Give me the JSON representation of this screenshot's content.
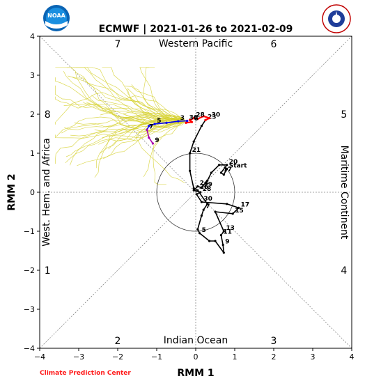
{
  "title": "ECMWF | 2021-01-26 to 2021-02-09",
  "credit": "Climate Prediction Center",
  "logos": {
    "left": {
      "name": "noaa",
      "text": "NOAA"
    },
    "right": {
      "name": "national-weather-service",
      "text": "NATIONAL WEATHER SERVICE"
    }
  },
  "colors": {
    "observed": "#000000",
    "ensemble": "#d4cf2a",
    "forecast_week1": "#ff0000",
    "forecast_week2": "#0000ff",
    "forecast_tail": "#aa00aa",
    "credit": "#ff1a1a"
  },
  "chart_data": {
    "type": "line",
    "title": "ECMWF | 2021-01-26 to 2021-02-09",
    "xlabel": "RMM 1",
    "ylabel": "RMM 2",
    "xlim": [
      -4,
      4
    ],
    "ylim": [
      -4,
      4
    ],
    "xticks": [
      -4,
      -3,
      -2,
      -1,
      0,
      1,
      2,
      3,
      4
    ],
    "yticks": [
      -4,
      -3,
      -2,
      -1,
      0,
      1,
      2,
      3,
      4
    ],
    "grid": false,
    "unit_circle_radius": 1,
    "region_labels": {
      "top": "Western Pacific",
      "bottom": "Indian Ocean",
      "left": "West. Hem. and Africa",
      "right": "Maritime Continent"
    },
    "phase_labels": [
      {
        "text": "7",
        "x": -2.0,
        "y": 3.8
      },
      {
        "text": "6",
        "x": 2.0,
        "y": 3.8
      },
      {
        "text": "8",
        "x": -3.8,
        "y": 2.0
      },
      {
        "text": "5",
        "x": 3.8,
        "y": 2.0
      },
      {
        "text": "1",
        "x": -3.8,
        "y": -2.0
      },
      {
        "text": "4",
        "x": 3.8,
        "y": -2.0
      },
      {
        "text": "2",
        "x": -2.0,
        "y": -3.8
      },
      {
        "text": "3",
        "x": 2.0,
        "y": -3.8
      }
    ],
    "series": [
      {
        "points": [
          {
            "x": 0.8,
            "y": 0.6,
            "label": "Start"
          },
          {
            "x": 0.72,
            "y": 0.45
          },
          {
            "x": 0.65,
            "y": 0.5,
            "label": "17"
          },
          {
            "x": 0.8,
            "y": 0.7,
            "label": "20"
          },
          {
            "x": 0.6,
            "y": 0.7
          },
          {
            "x": 0.4,
            "y": 0.5
          },
          {
            "x": 0.3,
            "y": 0.3
          },
          {
            "x": 0.15,
            "y": 0.12,
            "label": "19"
          },
          {
            "x": 0.05,
            "y": 0.15,
            "label": "24"
          },
          {
            "x": -0.05,
            "y": 0.05
          },
          {
            "x": 0.12,
            "y": 0.0,
            "label": "28"
          },
          {
            "x": 0.02,
            "y": -0.05
          },
          {
            "x": 0.15,
            "y": -0.25,
            "label": "30"
          },
          {
            "x": 0.8,
            "y": -0.3
          },
          {
            "x": 1.1,
            "y": -0.4,
            "label": "17"
          },
          {
            "x": 0.95,
            "y": -0.55,
            "label": "15"
          },
          {
            "x": 0.5,
            "y": -0.5
          },
          {
            "x": 0.72,
            "y": -1.0,
            "label": "13"
          },
          {
            "x": 0.65,
            "y": -1.1,
            "label": "11"
          },
          {
            "x": 0.7,
            "y": -1.35,
            "label": "9"
          },
          {
            "x": 0.72,
            "y": -1.55
          },
          {
            "x": 0.5,
            "y": -1.25
          },
          {
            "x": 0.35,
            "y": -1.25
          },
          {
            "x": 0.1,
            "y": -1.05,
            "label": "5"
          },
          {
            "x": 0.05,
            "y": -0.95
          },
          {
            "x": 0.15,
            "y": -0.6
          },
          {
            "x": 0.2,
            "y": -0.45,
            "label": "7"
          },
          {
            "x": 0.3,
            "y": -0.3
          },
          {
            "x": 0.05,
            "y": 0.05,
            "label": "26"
          },
          {
            "x": -0.05,
            "y": 0.1
          },
          {
            "x": -0.15,
            "y": 0.55
          },
          {
            "x": -0.15,
            "y": 1.0,
            "label": "21"
          },
          {
            "x": -0.05,
            "y": 1.3
          },
          {
            "x": 0.15,
            "y": 1.7
          },
          {
            "x": 0.25,
            "y": 1.85,
            "label": "23"
          }
        ]
      },
      {
        "points": [
          {
            "x": 0.25,
            "y": 1.85
          },
          {
            "x": 0.35,
            "y": 1.9,
            "label": "30"
          },
          {
            "x": 0.2,
            "y": 1.95
          },
          {
            "x": 0.05,
            "y": 1.88
          },
          {
            "x": -0.05,
            "y": 1.9,
            "label": "28"
          },
          {
            "x": -0.15,
            "y": 1.85
          },
          {
            "x": -0.1,
            "y": 1.8,
            "label": "6"
          },
          {
            "x": -0.25,
            "y": 1.78
          },
          {
            "x": -0.22,
            "y": 1.83,
            "label": "30"
          }
        ]
      },
      {
        "points": [
          {
            "x": -0.22,
            "y": 1.83
          },
          {
            "x": -0.45,
            "y": 1.82,
            "label": "3"
          },
          {
            "x": -0.75,
            "y": 1.78
          },
          {
            "x": -1.05,
            "y": 1.75,
            "label": "5"
          },
          {
            "x": -1.2,
            "y": 1.7
          },
          {
            "x": -1.25,
            "y": 1.6,
            "label": "7"
          }
        ]
      },
      {
        "points": [
          {
            "x": -1.25,
            "y": 1.6
          },
          {
            "x": -1.2,
            "y": 1.4
          },
          {
            "x": -1.1,
            "y": 1.25,
            "label": "9"
          }
        ]
      }
    ]
  }
}
